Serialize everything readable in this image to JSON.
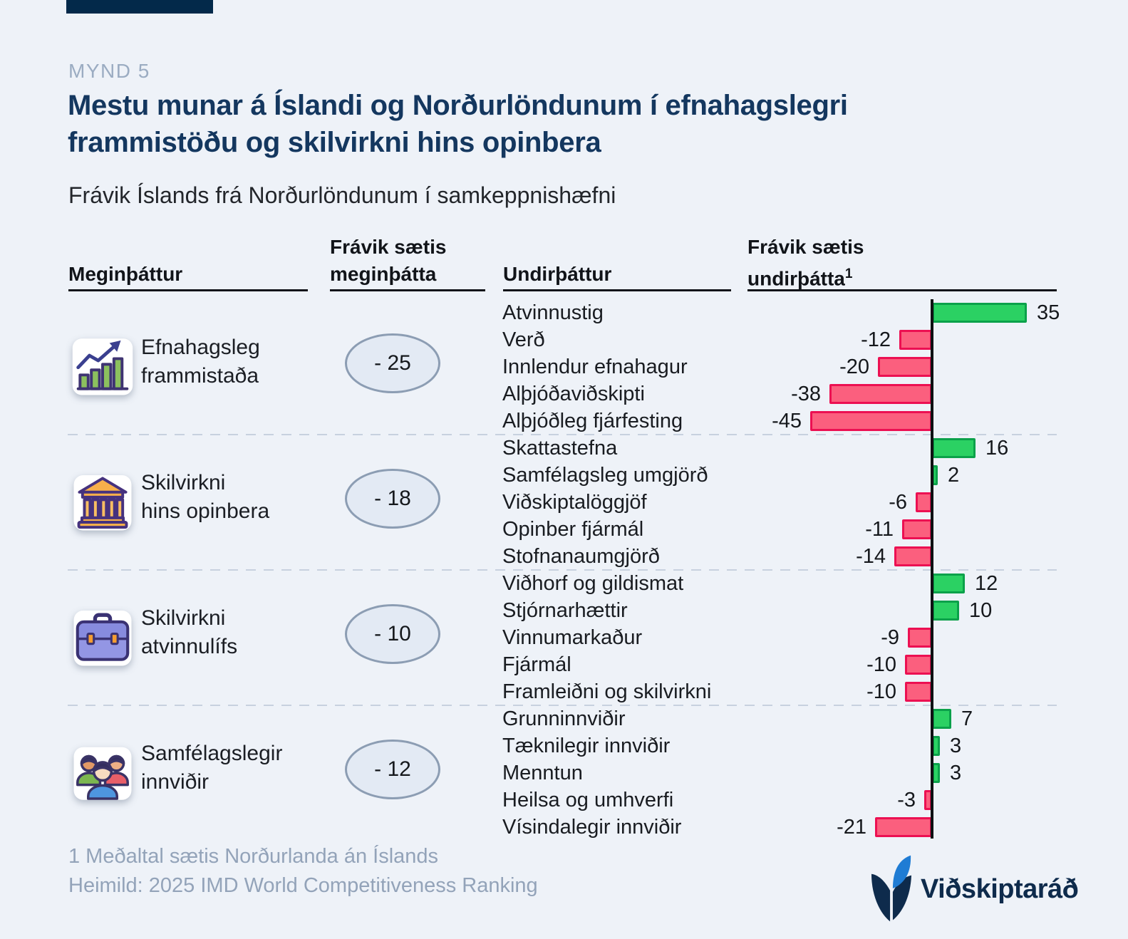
{
  "page": {
    "kicker": "MYND 5",
    "title_line1": "Mestu munar á Íslandi og Norðurlöndunum í efnahagslegri",
    "title_line2": "frammistöðu og skilvirkni hins opinbera",
    "subtitle": "Frávik Íslands frá Norðurlöndunum í samkeppnishæfni"
  },
  "table": {
    "col_main_header": "Meginþáttur",
    "col_dev_main_line1": "Frávik sætis",
    "col_dev_main_line2": "meginþátta",
    "col_sub_header": "Undirþáttur",
    "col_dev_sub_line1": "Frávik sætis",
    "col_dev_sub_line2": "undirþátta",
    "footnote_mark": "1"
  },
  "chart_data": {
    "type": "bar",
    "orientation": "horizontal",
    "title": "Frávik Íslands frá Norðurlöndunum í samkeppnishæfni",
    "baseline": 0,
    "value_range": [
      -45,
      35
    ],
    "positive_fill": "#2BD163",
    "positive_border": "#0BA14A",
    "negative_fill": "#FB5F7E",
    "negative_border": "#EC1052",
    "groups": [
      {
        "name": "Efnahagsleg frammistaða",
        "name_line1": "Efnahagsleg",
        "name_line2": "frammistaða",
        "icon": "growth-chart-icon",
        "deviation": -25,
        "deviation_label": "- 25",
        "items": [
          {
            "label": "Atvinnustig",
            "value": 35
          },
          {
            "label": "Verð",
            "value": -12
          },
          {
            "label": "Innlendur efnahagur",
            "value": -20
          },
          {
            "label": "Alþjóðaviðskipti",
            "value": -38
          },
          {
            "label": "Alþjóðleg fjárfesting",
            "value": -45
          }
        ]
      },
      {
        "name": "Skilvirkni hins opinbera",
        "name_line1": "Skilvirkni",
        "name_line2": "hins opinbera",
        "icon": "government-building-icon",
        "deviation": -18,
        "deviation_label": "- 18",
        "items": [
          {
            "label": "Skattastefna",
            "value": 16
          },
          {
            "label": "Samfélagsleg umgjörð",
            "value": 2
          },
          {
            "label": "Viðskiptalöggjöf",
            "value": -6
          },
          {
            "label": "Opinber fjármál",
            "value": -11
          },
          {
            "label": "Stofnanaumgjörð",
            "value": -14
          }
        ]
      },
      {
        "name": "Skilvirkni atvinnulífs",
        "name_line1": "Skilvirkni",
        "name_line2": "atvinnulífs",
        "icon": "briefcase-icon",
        "deviation": -10,
        "deviation_label": "- 10",
        "items": [
          {
            "label": "Viðhorf og gildismat",
            "value": 12
          },
          {
            "label": "Stjórnarhættir",
            "value": 10
          },
          {
            "label": "Vinnumarkaður",
            "value": -9
          },
          {
            "label": "Fjármál",
            "value": -10
          },
          {
            "label": "Framleiðni og skilvirkni",
            "value": -10
          }
        ]
      },
      {
        "name": "Samfélagslegir innviðir",
        "name_line1": "Samfélagslegir",
        "name_line2": "innviðir",
        "icon": "people-group-icon",
        "deviation": -12,
        "deviation_label": "- 12",
        "items": [
          {
            "label": "Grunninnviðir",
            "value": 7
          },
          {
            "label": "Tæknilegir innviðir",
            "value": 3
          },
          {
            "label": "Menntun",
            "value": 3
          },
          {
            "label": "Heilsa og umhverfi",
            "value": -3
          },
          {
            "label": "Vísindalegir innviðir",
            "value": -21
          }
        ]
      }
    ]
  },
  "footer": {
    "footnote": "1 Meðaltal sætis Norðurlanda án Íslands",
    "source": "Heimild: 2025 IMD World Competitiveness Ranking",
    "logo_text": "Viðskiptaráð"
  },
  "colors": {
    "background": "#EEF2F8",
    "title_navy": "#14375F",
    "kicker_gray": "#9BACC2",
    "badge_fill": "#E3EAF4",
    "badge_border": "#8C9DB3",
    "footer_gray": "#93A3B9",
    "logo_navy": "#0E2B4C",
    "logo_blue": "#1F7CD4"
  }
}
